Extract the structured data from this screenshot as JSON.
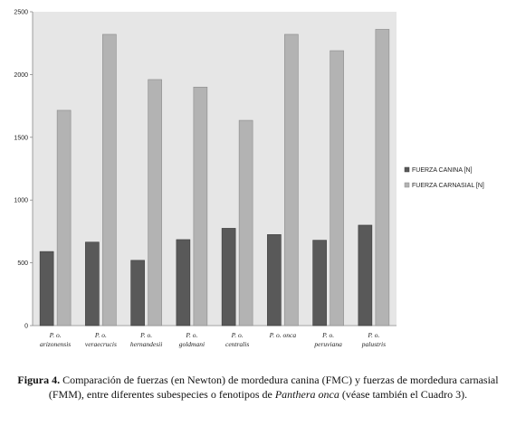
{
  "chart_data": {
    "type": "bar",
    "categories": [
      {
        "line1": "P. o.",
        "line2": "arizonensis"
      },
      {
        "line1": "P. o.",
        "line2": "veraecrucis"
      },
      {
        "line1": "P. o.",
        "line2": "hernandesii"
      },
      {
        "line1": "P. o.",
        "line2": "goldmani"
      },
      {
        "line1": "P. o.",
        "line2": "centralis"
      },
      {
        "line1": "P. o. onca",
        "line2": ""
      },
      {
        "line1": "P. o.",
        "line2": "peruviana"
      },
      {
        "line1": "P. o.",
        "line2": "palustris"
      }
    ],
    "series": [
      {
        "name": "FUERZA CANINA  [N]",
        "color": "#595959",
        "values": [
          590,
          665,
          520,
          685,
          775,
          725,
          680,
          800
        ]
      },
      {
        "name": "FUERZA CARNASIAL   [N]",
        "color": "#b3b3b3",
        "values": [
          1715,
          2320,
          1960,
          1900,
          1635,
          2320,
          2190,
          2360
        ]
      }
    ],
    "ylim": [
      0,
      2500
    ],
    "yticks": [
      "0",
      "500",
      "1000",
      "1500",
      "2000",
      "2500"
    ],
    "grid": false,
    "legend_position": "right",
    "plot_background": "#e6e6e6"
  },
  "caption": {
    "label": "Figura 4.",
    "part1": " Comparación de fuerzas (en Newton) de mordedura canina (FMC) y fuerzas de mordedura carnasial (FMM), entre diferentes subespecies o fenotipos de ",
    "species": "Panthera onca",
    "part2": " (véase también el Cuadro 3)."
  }
}
